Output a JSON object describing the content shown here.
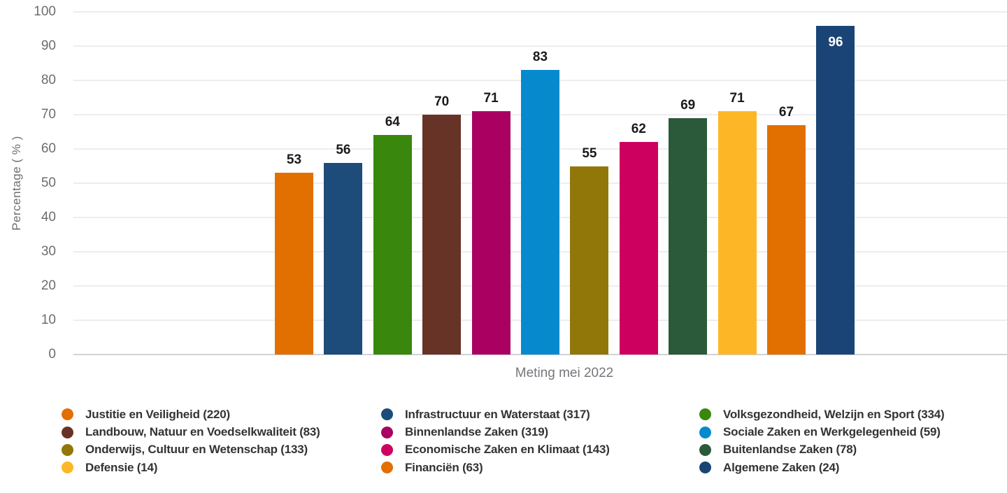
{
  "chart_data": {
    "type": "bar",
    "title": "",
    "xlabel": "Meting mei 2022",
    "ylabel": "Percentage ( % )",
    "ylim": [
      0,
      100
    ],
    "ytick_step": 10,
    "yticks": [
      0,
      10,
      20,
      30,
      40,
      50,
      60,
      70,
      80,
      90,
      100
    ],
    "grid": true,
    "legend_position": "bottom",
    "legend_columns": 3,
    "bars": [
      {
        "label": "Justitie en Veiligheid (220)",
        "value": 53,
        "color": "#E17000",
        "label_inside": false
      },
      {
        "label": "Infrastructuur en Waterstaat (317)",
        "value": 56,
        "color": "#1D4B7A",
        "label_inside": false
      },
      {
        "label": "Volksgezondheid, Welzijn en Sport (334)",
        "value": 64,
        "color": "#39870C",
        "label_inside": false
      },
      {
        "label": "Landbouw, Natuur en Voedselkwaliteit (83)",
        "value": 70,
        "color": "#673327",
        "label_inside": false
      },
      {
        "label": "Binnenlandse Zaken (319)",
        "value": 71,
        "color": "#A90061",
        "label_inside": false
      },
      {
        "label": "Sociale Zaken en Werkgelegenheid (59)",
        "value": 83,
        "color": "#0789CE",
        "label_inside": false
      },
      {
        "label": "Onderwijs, Cultuur en Wetenschap (133)",
        "value": 55,
        "color": "#91770A",
        "label_inside": false
      },
      {
        "label": "Economische Zaken en Klimaat (143)",
        "value": 62,
        "color": "#CE005F",
        "label_inside": false
      },
      {
        "label": "Buitenlandse Zaken (78)",
        "value": 69,
        "color": "#2A5A39",
        "label_inside": false
      },
      {
        "label": "Defensie (14)",
        "value": 71,
        "color": "#FDB726",
        "label_inside": false
      },
      {
        "label": "Financiën (63)",
        "value": 67,
        "color": "#E17000",
        "label_inside": false
      },
      {
        "label": "Algemene Zaken (24)",
        "value": 96,
        "color": "#1A4475",
        "label_inside": true
      }
    ]
  }
}
